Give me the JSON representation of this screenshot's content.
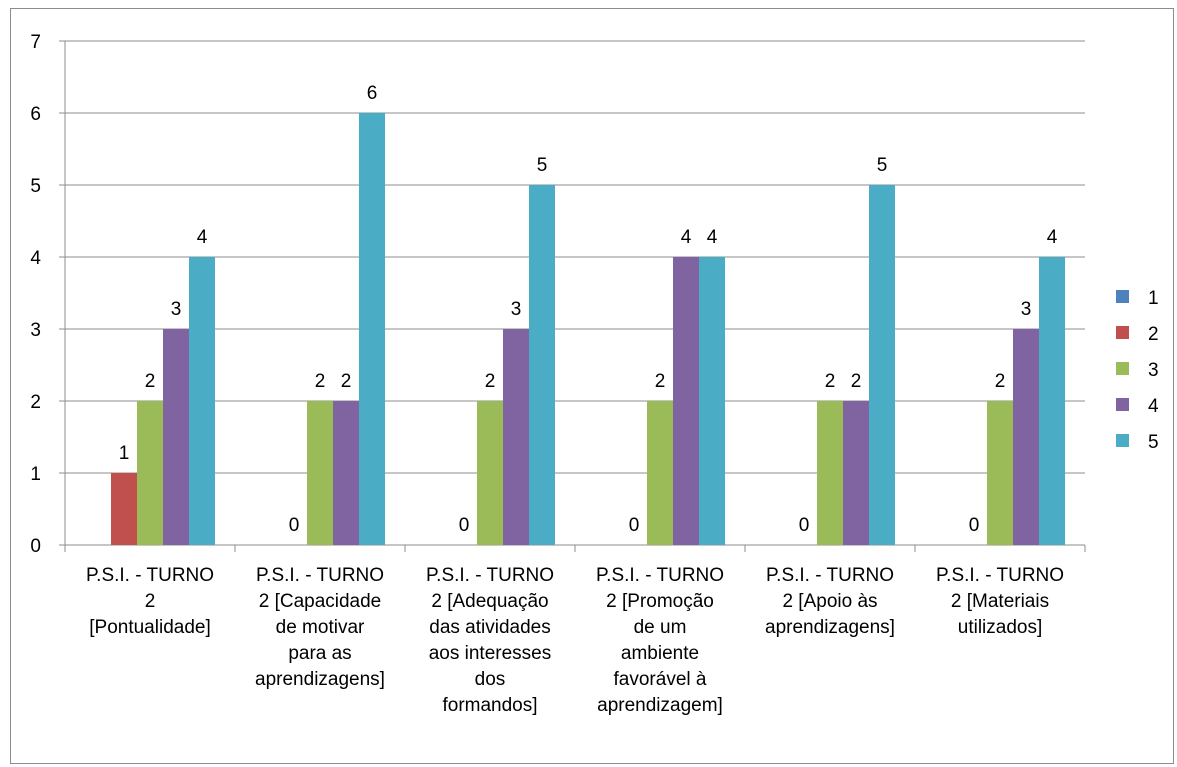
{
  "chart_data": {
    "type": "bar",
    "title": "",
    "xlabel": "",
    "ylabel": "",
    "ylim": [
      0,
      7
    ],
    "yticks": [
      0,
      1,
      2,
      3,
      4,
      5,
      6,
      7
    ],
    "grid": true,
    "legend_position": "right",
    "categories": [
      [
        "P.S.I. - TURNO",
        "2",
        "[Pontualidade]"
      ],
      [
        "P.S.I. - TURNO",
        "2 [Capacidade",
        "de motivar",
        "para as",
        "aprendizagens]"
      ],
      [
        "P.S.I. - TURNO",
        "2 [Adequação",
        "das atividades",
        "aos interesses",
        "dos",
        "formandos]"
      ],
      [
        "P.S.I. - TURNO",
        "2 [Promoção",
        "de um",
        "ambiente",
        "favorável à",
        "aprendizagem]"
      ],
      [
        "P.S.I. - TURNO",
        "2 [Apoio às",
        "aprendizagens]"
      ],
      [
        "P.S.I. - TURNO",
        "2 [Materiais",
        "utilizados]"
      ]
    ],
    "series": [
      {
        "name": "1",
        "color": "#4f81bd",
        "values": [
          null,
          null,
          null,
          null,
          null,
          null
        ]
      },
      {
        "name": "2",
        "color": "#c0504d",
        "values": [
          1,
          0,
          0,
          0,
          0,
          0
        ]
      },
      {
        "name": "3",
        "color": "#9bbb59",
        "values": [
          2,
          2,
          2,
          2,
          2,
          2
        ]
      },
      {
        "name": "4",
        "color": "#8064a2",
        "values": [
          3,
          2,
          3,
          4,
          2,
          3
        ]
      },
      {
        "name": "5",
        "color": "#4bacc6",
        "values": [
          4,
          6,
          5,
          4,
          5,
          4
        ]
      }
    ]
  }
}
